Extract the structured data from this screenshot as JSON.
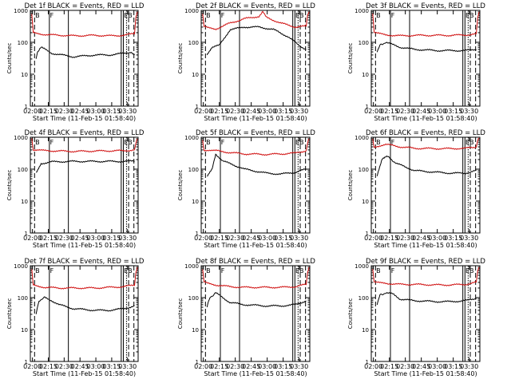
{
  "shared": {
    "xlabel": "Start Time (11-Feb-15 01:58:40)",
    "ylabel": "Counts/sec",
    "x_ticks": [
      "02:00",
      "02:15",
      "02:30",
      "02:45",
      "03:00",
      "03:15",
      "03:30"
    ],
    "y_ticks": [
      "1",
      "10",
      "100",
      "1000"
    ],
    "marker_labels": [
      "B",
      "F",
      "EB"
    ],
    "colors": {
      "events": "#000000",
      "lld": "#d01010",
      "axis": "#000000"
    }
  },
  "chart_data": [
    {
      "type": "line",
      "title": "Det 1f BLACK = Events, RED = LLD",
      "ylim": [
        1,
        1000
      ],
      "xlim": [
        "01:58",
        "03:40"
      ],
      "series": [
        {
          "name": "Events",
          "values": [
            [
              8,
              30
            ],
            [
              10,
              50
            ],
            [
              15,
              70
            ],
            [
              30,
              45
            ],
            [
              60,
              35
            ],
            [
              90,
              40
            ],
            [
              110,
              40
            ],
            [
              130,
              45
            ],
            [
              140,
              50
            ],
            [
              145,
              40
            ]
          ]
        },
        {
          "name": "LLD",
          "values": [
            [
              2,
              800
            ],
            [
              4,
              200
            ],
            [
              15,
              180
            ],
            [
              30,
              170
            ],
            [
              60,
              160
            ],
            [
              90,
              165
            ],
            [
              110,
              160
            ],
            [
              130,
              165
            ],
            [
              145,
              190
            ],
            [
              147,
              600
            ],
            [
              149,
              900
            ]
          ]
        }
      ]
    },
    {
      "type": "line",
      "title": "Det 2f BLACK = Events, RED = LLD",
      "ylim": [
        1,
        1000
      ],
      "xlim": [
        "01:58",
        "03:40"
      ],
      "series": [
        {
          "name": "Events",
          "values": [
            [
              8,
              40
            ],
            [
              15,
              70
            ],
            [
              25,
              80
            ],
            [
              40,
              250
            ],
            [
              60,
              300
            ],
            [
              80,
              300
            ],
            [
              100,
              250
            ],
            [
              120,
              150
            ],
            [
              135,
              80
            ],
            [
              145,
              60
            ]
          ]
        },
        {
          "name": "LLD",
          "values": [
            [
              2,
              800
            ],
            [
              4,
              300
            ],
            [
              20,
              260
            ],
            [
              40,
              400
            ],
            [
              60,
              550
            ],
            [
              80,
              650
            ],
            [
              85,
              900
            ],
            [
              90,
              600
            ],
            [
              110,
              400
            ],
            [
              130,
              300
            ],
            [
              145,
              320
            ],
            [
              147,
              700
            ],
            [
              149,
              900
            ]
          ]
        }
      ]
    },
    {
      "type": "line",
      "title": "Det 3f BLACK = Events, RED = LLD",
      "ylim": [
        1,
        1000
      ],
      "xlim": [
        "01:58",
        "03:40"
      ],
      "series": [
        {
          "name": "Events",
          "values": [
            [
              8,
              50
            ],
            [
              12,
              80
            ],
            [
              20,
              100
            ],
            [
              40,
              70
            ],
            [
              60,
              60
            ],
            [
              90,
              55
            ],
            [
              110,
              55
            ],
            [
              130,
              55
            ],
            [
              145,
              60
            ]
          ]
        },
        {
          "name": "LLD",
          "values": [
            [
              2,
              800
            ],
            [
              4,
              200
            ],
            [
              20,
              170
            ],
            [
              40,
              160
            ],
            [
              60,
              165
            ],
            [
              90,
              165
            ],
            [
              110,
              165
            ],
            [
              130,
              170
            ],
            [
              145,
              180
            ],
            [
              147,
              600
            ],
            [
              149,
              900
            ]
          ]
        }
      ]
    },
    {
      "type": "line",
      "title": "Det 4f BLACK = Events, RED = LLD",
      "ylim": [
        1,
        1000
      ],
      "xlim": [
        "01:58",
        "03:40"
      ],
      "series": [
        {
          "name": "Events",
          "values": [
            [
              8,
              80
            ],
            [
              15,
              150
            ],
            [
              30,
              170
            ],
            [
              60,
              175
            ],
            [
              90,
              175
            ],
            [
              110,
              175
            ],
            [
              130,
              175
            ],
            [
              145,
              180
            ]
          ]
        },
        {
          "name": "LLD",
          "values": [
            [
              2,
              900
            ],
            [
              4,
              400
            ],
            [
              20,
              380
            ],
            [
              40,
              370
            ],
            [
              60,
              360
            ],
            [
              90,
              370
            ],
            [
              110,
              375
            ],
            [
              130,
              380
            ],
            [
              145,
              400
            ],
            [
              147,
              700
            ],
            [
              149,
              900
            ]
          ]
        }
      ]
    },
    {
      "type": "line",
      "title": "Det 5f BLACK = Events, RED = LLD",
      "ylim": [
        1,
        1000
      ],
      "xlim": [
        "01:58",
        "03:40"
      ],
      "series": [
        {
          "name": "Events",
          "values": [
            [
              8,
              60
            ],
            [
              15,
              100
            ],
            [
              20,
              300
            ],
            [
              30,
              180
            ],
            [
              60,
              100
            ],
            [
              90,
              75
            ],
            [
              110,
              70
            ],
            [
              130,
              80
            ],
            [
              145,
              100
            ]
          ]
        },
        {
          "name": "LLD",
          "values": [
            [
              2,
              800
            ],
            [
              4,
              400
            ],
            [
              20,
              380
            ],
            [
              40,
              330
            ],
            [
              60,
              300
            ],
            [
              90,
              290
            ],
            [
              110,
              300
            ],
            [
              130,
              320
            ],
            [
              145,
              380
            ],
            [
              147,
              700
            ],
            [
              149,
              900
            ]
          ]
        }
      ]
    },
    {
      "type": "line",
      "title": "Det 6f BLACK = Events, RED = LLD",
      "ylim": [
        1,
        1000
      ],
      "xlim": [
        "01:58",
        "03:40"
      ],
      "series": [
        {
          "name": "Events",
          "values": [
            [
              8,
              60
            ],
            [
              15,
              200
            ],
            [
              22,
              250
            ],
            [
              35,
              150
            ],
            [
              60,
              90
            ],
            [
              90,
              80
            ],
            [
              110,
              75
            ],
            [
              130,
              75
            ],
            [
              145,
              90
            ]
          ]
        },
        {
          "name": "LLD",
          "values": [
            [
              2,
              900
            ],
            [
              4,
              500
            ],
            [
              20,
              600
            ],
            [
              40,
              500
            ],
            [
              60,
              450
            ],
            [
              90,
              440
            ],
            [
              110,
              440
            ],
            [
              130,
              450
            ],
            [
              145,
              500
            ],
            [
              147,
              800
            ],
            [
              149,
              950
            ]
          ]
        }
      ]
    },
    {
      "type": "line",
      "title": "Det 7f BLACK = Events, RED = LLD",
      "ylim": [
        1,
        1000
      ],
      "xlim": [
        "01:58",
        "03:40"
      ],
      "series": [
        {
          "name": "Events",
          "values": [
            [
              8,
              30
            ],
            [
              12,
              80
            ],
            [
              20,
              100
            ],
            [
              30,
              80
            ],
            [
              40,
              60
            ],
            [
              60,
              45
            ],
            [
              90,
              40
            ],
            [
              110,
              40
            ],
            [
              130,
              45
            ],
            [
              145,
              55
            ]
          ]
        },
        {
          "name": "LLD",
          "values": [
            [
              2,
              800
            ],
            [
              4,
              250
            ],
            [
              20,
              210
            ],
            [
              40,
              200
            ],
            [
              60,
              200
            ],
            [
              90,
              200
            ],
            [
              110,
              210
            ],
            [
              130,
              220
            ],
            [
              145,
              250
            ],
            [
              147,
              600
            ],
            [
              149,
              900
            ]
          ]
        }
      ]
    },
    {
      "type": "line",
      "title": "Det 8f BLACK = Events, RED = LLD",
      "ylim": [
        1,
        1000
      ],
      "xlim": [
        "01:58",
        "03:40"
      ],
      "series": [
        {
          "name": "Events",
          "values": [
            [
              8,
              50
            ],
            [
              12,
              100
            ],
            [
              20,
              140
            ],
            [
              30,
              100
            ],
            [
              40,
              70
            ],
            [
              60,
              60
            ],
            [
              90,
              55
            ],
            [
              110,
              55
            ],
            [
              130,
              60
            ],
            [
              145,
              80
            ]
          ]
        },
        {
          "name": "LLD",
          "values": [
            [
              2,
              800
            ],
            [
              4,
              300
            ],
            [
              20,
              250
            ],
            [
              40,
              220
            ],
            [
              60,
              210
            ],
            [
              90,
              210
            ],
            [
              110,
              210
            ],
            [
              130,
              220
            ],
            [
              145,
              260
            ],
            [
              147,
              600
            ],
            [
              149,
              900
            ]
          ]
        }
      ]
    },
    {
      "type": "line",
      "title": "Det 9f BLACK = Events, RED = LLD",
      "ylim": [
        1,
        1000
      ],
      "xlim": [
        "01:58",
        "03:40"
      ],
      "series": [
        {
          "name": "Events",
          "values": [
            [
              8,
              60
            ],
            [
              12,
              120
            ],
            [
              20,
              140
            ],
            [
              30,
              130
            ],
            [
              40,
              90
            ],
            [
              60,
              80
            ],
            [
              90,
              75
            ],
            [
              110,
              75
            ],
            [
              130,
              80
            ],
            [
              145,
              95
            ]
          ]
        },
        {
          "name": "LLD",
          "values": [
            [
              2,
              800
            ],
            [
              4,
              300
            ],
            [
              20,
              280
            ],
            [
              40,
              260
            ],
            [
              60,
              260
            ],
            [
              90,
              250
            ],
            [
              110,
              250
            ],
            [
              130,
              260
            ],
            [
              145,
              300
            ],
            [
              147,
              700
            ],
            [
              149,
              900
            ]
          ]
        }
      ]
    }
  ]
}
